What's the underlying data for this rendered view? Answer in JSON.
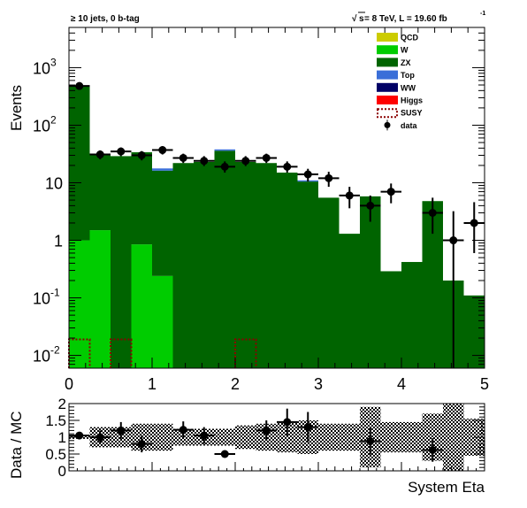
{
  "header": {
    "selection": "≥ 10 jets, 0 b-tag",
    "energy_prefix": "s",
    "energy_rest": " = 8 TeV, L = 19.60 fb",
    "lumi_exponent": "-1"
  },
  "chart_data": [
    {
      "type": "bar",
      "stacked": true,
      "bin_edges": [
        0,
        0.25,
        0.5,
        0.75,
        1,
        1.25,
        1.5,
        1.75,
        2,
        2.25,
        2.5,
        2.75,
        3,
        3.25,
        3.5,
        3.75,
        4,
        4.25,
        4.5,
        4.75,
        5
      ],
      "xlabel": "System Eta",
      "ylabel": "Events",
      "xlim": [
        0,
        5
      ],
      "ylim": [
        0.006,
        5000
      ],
      "yscale": "log",
      "x_ticks": [
        "0",
        "1",
        "2",
        "3",
        "4",
        "5"
      ],
      "y_ticks": [
        {
          "value": 0.01,
          "base": "10",
          "exp": "-2"
        },
        {
          "value": 0.1,
          "base": "10",
          "exp": "-1"
        },
        {
          "value": 1,
          "base": "1",
          "exp": ""
        },
        {
          "value": 10,
          "base": "10",
          "exp": ""
        },
        {
          "value": 100,
          "base": "10",
          "exp": "2"
        },
        {
          "value": 1000,
          "base": "10",
          "exp": "3"
        }
      ],
      "legend_position": "top-right",
      "series": [
        {
          "name": "QCD",
          "color": "#cccc00",
          "style": "fill",
          "values": [
            0,
            0,
            0,
            0,
            0,
            0,
            0,
            0,
            0,
            0,
            0,
            0,
            0,
            0,
            0,
            0,
            0,
            0,
            0,
            0
          ]
        },
        {
          "name": "W",
          "color": "#00cc00",
          "style": "fill",
          "values": [
            1.0,
            1.5,
            0,
            0.85,
            0.24,
            0,
            0,
            0,
            0,
            0,
            0,
            0,
            0,
            0,
            0,
            0,
            0,
            0,
            0,
            0
          ]
        },
        {
          "name": "ZX",
          "color": "#006400",
          "style": "fill",
          "values": [
            479,
            29.5,
            29,
            33,
            16,
            22,
            23,
            36,
            23,
            22,
            15,
            10.5,
            5.5,
            1.3,
            5.8,
            0.29,
            0.42,
            4.8,
            0.2,
            0.11
          ]
        },
        {
          "name": "Top",
          "color": "#3a6fd8",
          "style": "fill",
          "values": [
            0,
            0,
            0,
            0,
            1.5,
            0,
            0,
            2,
            0,
            0,
            0,
            0.5,
            0,
            0,
            0,
            0,
            0,
            0,
            0,
            0
          ]
        },
        {
          "name": "WW",
          "color": "#000066",
          "style": "fill",
          "values": [
            0,
            0,
            0,
            0,
            0,
            0,
            0,
            0,
            0,
            0,
            0,
            0,
            0,
            0,
            0,
            0,
            0,
            0,
            0,
            0
          ]
        },
        {
          "name": "Higgs",
          "color": "#ff0000",
          "style": "fill",
          "values": [
            0,
            0,
            0,
            0,
            0,
            0,
            0,
            0,
            0,
            0,
            0,
            0,
            0,
            0,
            0,
            0,
            0,
            0,
            0,
            0
          ]
        },
        {
          "name": "SUSY",
          "color": "#8b0000",
          "style": "dashed-outline",
          "values": [
            0.019,
            0,
            0.019,
            0,
            0,
            0,
            0,
            0,
            0.019,
            0,
            0,
            0,
            0,
            0,
            0,
            0,
            0,
            0,
            0,
            0
          ]
        }
      ],
      "data": {
        "name": "data",
        "color": "#000000",
        "x": [
          0.125,
          0.375,
          0.625,
          0.875,
          1.125,
          1.375,
          1.625,
          1.875,
          2.125,
          2.375,
          2.625,
          2.875,
          3.125,
          3.375,
          3.625,
          3.875,
          4.375,
          4.625,
          4.875
        ],
        "y": [
          480,
          31,
          35,
          30,
          37,
          27,
          24,
          19,
          24,
          27,
          19,
          14,
          12,
          6,
          4,
          7,
          3,
          1,
          2
        ],
        "y_low": [
          455,
          25.5,
          29,
          24.5,
          31,
          22,
          19.5,
          15,
          19.5,
          22,
          15,
          10.5,
          8.5,
          3.6,
          2.1,
          4.4,
          1.3,
          0.006,
          0.6
        ],
        "y_high": [
          505,
          36.5,
          41,
          35.5,
          43,
          32,
          29,
          23.5,
          29,
          32,
          23.5,
          17.5,
          15.5,
          8.5,
          6,
          9.7,
          5.5,
          3.2,
          4.6
        ]
      }
    },
    {
      "type": "scatter",
      "xlabel": "System Eta",
      "ylabel": "Data / MC",
      "xlim": [
        0,
        5
      ],
      "ylim": [
        0,
        2
      ],
      "x_ticks": [
        "0",
        "1",
        "2",
        "3",
        "4",
        "5"
      ],
      "y_ticks": [
        "0",
        "0.5",
        "1",
        "1.5",
        "2"
      ],
      "ratio": {
        "x": [
          0.125,
          0.375,
          0.625,
          0.875,
          1.375,
          1.625,
          1.875,
          2.375,
          2.625,
          2.875,
          3.625,
          4.375
        ],
        "y": [
          1.05,
          1.0,
          1.2,
          0.8,
          1.22,
          1.05,
          0.5,
          1.2,
          1.45,
          1.3,
          0.88,
          0.62
        ],
        "err": [
          0.05,
          0.2,
          0.25,
          0.25,
          0.25,
          0.25,
          0.1,
          0.3,
          0.4,
          0.45,
          0.4,
          0.35
        ]
      },
      "uncertainty_band": {
        "x": [
          0.125,
          0.375,
          0.625,
          0.875,
          1.125,
          1.375,
          1.625,
          1.875,
          2.125,
          2.375,
          2.625,
          2.875,
          3.125,
          3.375,
          3.625,
          3.875,
          4.125,
          4.375,
          4.625,
          4.875
        ],
        "low": [
          0.95,
          0.7,
          0.7,
          0.6,
          0.6,
          0.75,
          0.75,
          0.75,
          0.65,
          0.6,
          0.55,
          0.5,
          0.6,
          0.6,
          0.1,
          0.55,
          0.55,
          0.3,
          0.0,
          0.45
        ],
        "high": [
          1.05,
          1.3,
          1.3,
          1.4,
          1.4,
          1.25,
          1.25,
          1.25,
          1.35,
          1.4,
          1.45,
          1.5,
          1.4,
          1.4,
          1.9,
          1.45,
          1.45,
          1.7,
          2.0,
          1.55
        ]
      }
    }
  ]
}
